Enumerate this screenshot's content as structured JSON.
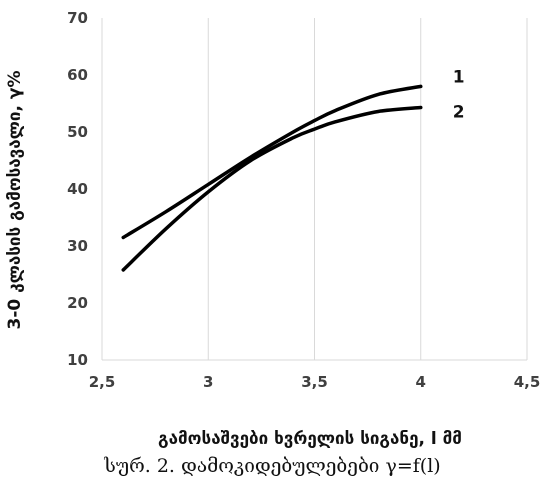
{
  "chart_data": {
    "type": "line",
    "title": "",
    "xlabel": "გამოსაშვები ხვრელის სიგანე, l მმ",
    "ylabel": "3-0 კლასის გამოსავალი, γ%",
    "xlim": [
      2.5,
      4.5
    ],
    "ylim": [
      10,
      70
    ],
    "x_ticks": [
      "2,5",
      "3",
      "3,5",
      "4",
      "4,5"
    ],
    "y_ticks": [
      "10",
      "20",
      "30",
      "40",
      "50",
      "60",
      "70"
    ],
    "grid": "vertical",
    "series": [
      {
        "name": "1",
        "color": "#000000",
        "x": [
          2.6,
          2.8,
          3.0,
          3.2,
          3.4,
          3.5,
          3.6,
          3.8,
          4.0
        ],
        "y": [
          31.5,
          36.0,
          40.8,
          45.6,
          50.0,
          52.0,
          53.8,
          56.6,
          58.0
        ]
      },
      {
        "name": "2",
        "color": "#000000",
        "x": [
          2.6,
          2.8,
          3.0,
          3.2,
          3.4,
          3.5,
          3.6,
          3.8,
          4.0
        ],
        "y": [
          25.8,
          33.0,
          39.5,
          45.0,
          49.0,
          50.5,
          51.8,
          53.6,
          54.3
        ]
      }
    ]
  },
  "caption": "სურ. 2. დამოკიდებულებები γ=f(l)"
}
